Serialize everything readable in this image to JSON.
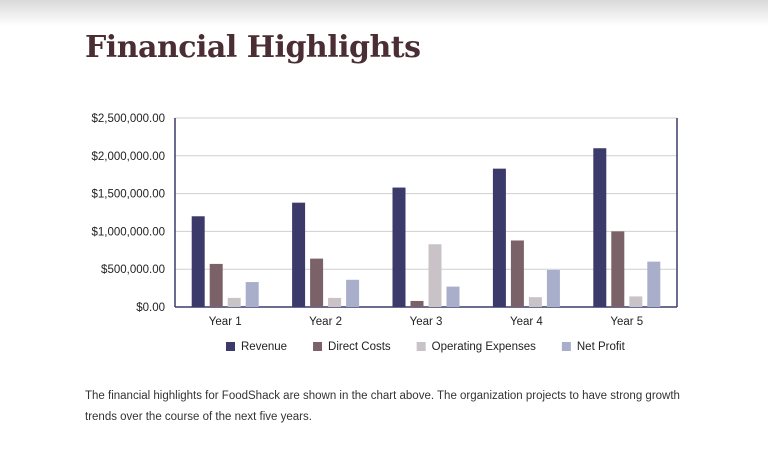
{
  "page": {
    "title": "Financial Highlights",
    "caption": "The financial highlights for FoodShack are shown in the chart above.  The organization projects to have strong growth trends over the course of the next five years."
  },
  "chart_data": {
    "type": "bar",
    "categories": [
      "Year 1",
      "Year 2",
      "Year 3",
      "Year 4",
      "Year 5"
    ],
    "series": [
      {
        "name": "Revenue",
        "color": "#3b3a6b",
        "values": [
          1200000,
          1380000,
          1580000,
          1830000,
          2100000
        ]
      },
      {
        "name": "Direct Costs",
        "color": "#7b6168",
        "values": [
          570000,
          640000,
          80000,
          880000,
          1000000
        ]
      },
      {
        "name": "Operating Expenses",
        "color": "#c9c3c8",
        "values": [
          120000,
          120000,
          830000,
          130000,
          140000
        ]
      },
      {
        "name": "Net Profit",
        "color": "#a9aecb",
        "values": [
          330000,
          360000,
          270000,
          490000,
          600000
        ]
      }
    ],
    "ylim": [
      0,
      2500000
    ],
    "yticks": [
      0,
      500000,
      1000000,
      1500000,
      2000000,
      2500000
    ],
    "ytick_labels": [
      "$0.00",
      "$500,000.00",
      "$1,000,000.00",
      "$1,500,000.00",
      "$2,000,000.00",
      "$2,500,000.00"
    ],
    "grid": true,
    "legend_position": "bottom",
    "frame_color": "#3b3a6b",
    "grid_color": "#cfcfcf"
  }
}
